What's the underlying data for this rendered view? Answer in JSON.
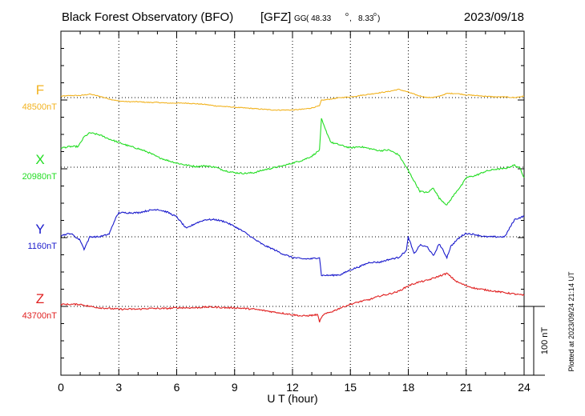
{
  "header": {
    "title": "Black Forest Observatory (BFO)",
    "agency": "[GFZ]",
    "coord_prefix": "GG",
    "coord_lat": "( 48.33",
    "coord_lon": "8.33",
    "date": "2023/09/18"
  },
  "side_note": "Plotted at 2023/09/24 21:14 UT",
  "scale_label": "100 nT",
  "colors": {
    "F": "#f2b320",
    "X": "#22dd22",
    "Y": "#1a1acc",
    "Z": "#e02020",
    "frame": "#000000",
    "grid": "#000000"
  },
  "chart_data": {
    "type": "line",
    "x_label": "U T (hour)",
    "x_range": [
      0,
      24
    ],
    "x_ticks": [
      "0",
      "3",
      "6",
      "9",
      "12",
      "15",
      "18",
      "21",
      "24"
    ],
    "grid": "dotted",
    "scale_bar_nT": 100,
    "series": [
      {
        "name": "F",
        "baseline_label": "48500nT",
        "baseline_nT": 48500,
        "x": [
          0,
          0.5,
          1,
          1.5,
          2,
          2.5,
          3,
          3.5,
          4,
          4.5,
          5,
          5.5,
          6,
          6.5,
          7,
          7.5,
          8,
          8.5,
          9,
          9.5,
          10,
          10.5,
          11,
          11.5,
          12,
          12.5,
          13,
          13.4,
          13.5,
          14,
          14.5,
          15,
          15.5,
          16,
          16.5,
          17,
          17.5,
          18,
          18.5,
          19,
          19.5,
          20,
          20.5,
          21,
          21.5,
          22,
          22.5,
          23,
          23.5,
          24
        ],
        "values": [
          2,
          3,
          3,
          5,
          2,
          -2,
          -5,
          -6,
          -6,
          -7,
          -7,
          -8,
          -8,
          -8,
          -9,
          -10,
          -12,
          -13,
          -14,
          -15,
          -16,
          -17,
          -18,
          -18,
          -18,
          -17,
          -15,
          -12,
          -4,
          -2,
          0,
          1,
          3,
          5,
          7,
          9,
          12,
          8,
          3,
          0,
          1,
          6,
          6,
          4,
          3,
          2,
          1,
          1,
          0,
          2
        ]
      },
      {
        "name": "X",
        "baseline_label": "20980nT",
        "baseline_nT": 20980,
        "x": [
          0,
          0.5,
          0.9,
          1.2,
          1.5,
          2,
          2.5,
          3,
          3.5,
          4,
          4.5,
          5,
          5.5,
          6,
          6.5,
          7,
          7.5,
          8,
          8.5,
          9,
          9.5,
          10,
          10.5,
          11,
          11.5,
          12,
          12.5,
          13,
          13.4,
          13.5,
          13.7,
          14,
          14.5,
          15,
          15.5,
          16,
          16.5,
          17,
          17.5,
          18,
          18.3,
          18.6,
          19,
          19.3,
          19.6,
          20,
          20.2,
          20.5,
          20.8,
          21,
          21.5,
          22,
          22.5,
          23,
          23.5,
          23.8,
          24
        ],
        "values": [
          28,
          30,
          30,
          44,
          50,
          47,
          41,
          36,
          31,
          27,
          22,
          15,
          10,
          6,
          3,
          1,
          2,
          0,
          -5,
          -8,
          -9,
          -8,
          -4,
          -1,
          2,
          6,
          10,
          16,
          25,
          70,
          55,
          36,
          32,
          28,
          30,
          27,
          24,
          25,
          18,
          -5,
          -20,
          -35,
          -37,
          -30,
          -45,
          -55,
          -47,
          -35,
          -25,
          -15,
          -12,
          -6,
          -3,
          -2,
          3,
          -2,
          -15
        ]
      },
      {
        "name": "Y",
        "baseline_label": "1160nT",
        "baseline_nT": 1160,
        "x": [
          0,
          0.5,
          1,
          1.2,
          1.5,
          2,
          2.5,
          2.8,
          3,
          3.5,
          4,
          4.5,
          5,
          5.5,
          6,
          6.5,
          7,
          7.5,
          8,
          8.5,
          9,
          9.5,
          10,
          10.5,
          11,
          11.5,
          12,
          12.5,
          13,
          13.4,
          13.5,
          14,
          14.5,
          15,
          15.5,
          16,
          16.5,
          17,
          17.5,
          17.9,
          18,
          18.3,
          18.6,
          19,
          19.3,
          19.6,
          20,
          20.2,
          20.5,
          20.8,
          21,
          21.5,
          22,
          22.5,
          23,
          23.5,
          24
        ],
        "values": [
          2,
          5,
          -5,
          -18,
          0,
          0,
          4,
          25,
          35,
          35,
          35,
          38,
          40,
          36,
          29,
          12,
          20,
          25,
          25,
          22,
          15,
          7,
          -3,
          -12,
          -18,
          -25,
          -30,
          -32,
          -32,
          -30,
          -56,
          -56,
          -55,
          -48,
          -43,
          -37,
          -37,
          -33,
          -30,
          -20,
          0,
          -25,
          -12,
          -15,
          -28,
          -10,
          -30,
          -14,
          -5,
          2,
          5,
          3,
          0,
          0,
          0,
          25,
          30
        ]
      },
      {
        "name": "Z",
        "baseline_label": "43700nT",
        "baseline_nT": 43700,
        "x": [
          0,
          0.5,
          1,
          1.5,
          2,
          2.5,
          3,
          3.5,
          4,
          4.5,
          5,
          5.5,
          6,
          6.5,
          7,
          7.5,
          8,
          8.5,
          9,
          9.5,
          10,
          10.5,
          11,
          11.5,
          12,
          12.5,
          13,
          13.3,
          13.4,
          13.6,
          14,
          14.5,
          15,
          15.5,
          16,
          16.5,
          17,
          17.5,
          18,
          18.5,
          19,
          19.5,
          20,
          20.5,
          21,
          21.5,
          22,
          22.5,
          23,
          23.5,
          24
        ],
        "values": [
          3,
          3,
          3,
          0,
          -2,
          -3,
          -4,
          -4,
          -4,
          -3,
          -3,
          -3,
          -2,
          -2,
          -2,
          -1,
          -1,
          -2,
          -2,
          -3,
          -4,
          -6,
          -8,
          -10,
          -12,
          -14,
          -13,
          -12,
          -22,
          -12,
          -8,
          -2,
          3,
          7,
          10,
          15,
          18,
          22,
          30,
          35,
          38,
          43,
          48,
          36,
          30,
          26,
          24,
          22,
          20,
          18,
          16
        ]
      }
    ]
  }
}
